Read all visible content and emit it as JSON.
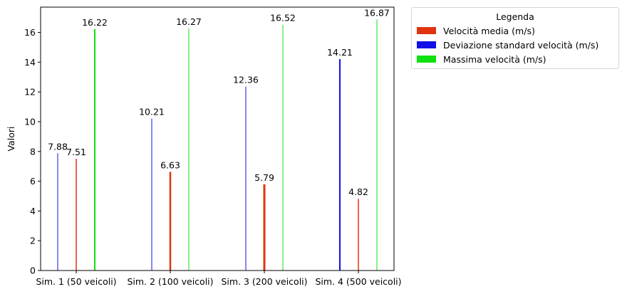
{
  "chart_data": {
    "type": "bar",
    "categories": [
      "Sim. 1 (50 veicoli)",
      "Sim. 2 (100 veicoli)",
      "Sim. 3 (200 veicoli)",
      "Sim. 4 (500 veicoli)"
    ],
    "series": [
      {
        "name": "Velocità media (m/s)",
        "color": "#e0340f",
        "values": [
          7.51,
          6.63,
          5.79,
          4.82
        ],
        "labels": [
          "7.51",
          "6.63",
          "5.79",
          "4.82"
        ]
      },
      {
        "name": "Deviazione standard velocità (m/s)",
        "color": "#1010e6",
        "values": [
          7.88,
          10.21,
          12.36,
          14.21
        ],
        "labels": [
          "7.88",
          "10.21",
          "12.36",
          "14.21"
        ]
      },
      {
        "name": "Massima velocità (m/s)",
        "color": "#10e010",
        "values": [
          16.22,
          16.27,
          16.52,
          16.87
        ],
        "labels": [
          "16.22",
          "16.27",
          "16.52",
          "16.87"
        ]
      }
    ],
    "ylabel": "Valori",
    "ylim": [
      0,
      17.7
    ],
    "yticks": [
      0,
      2,
      4,
      6,
      8,
      10,
      12,
      14,
      16
    ],
    "ytick_labels": [
      "0",
      "2",
      "4",
      "6",
      "8",
      "10",
      "12",
      "14",
      "16"
    ],
    "grid": false,
    "legend": {
      "title": "Legenda",
      "placement": "outside-top-right"
    }
  }
}
